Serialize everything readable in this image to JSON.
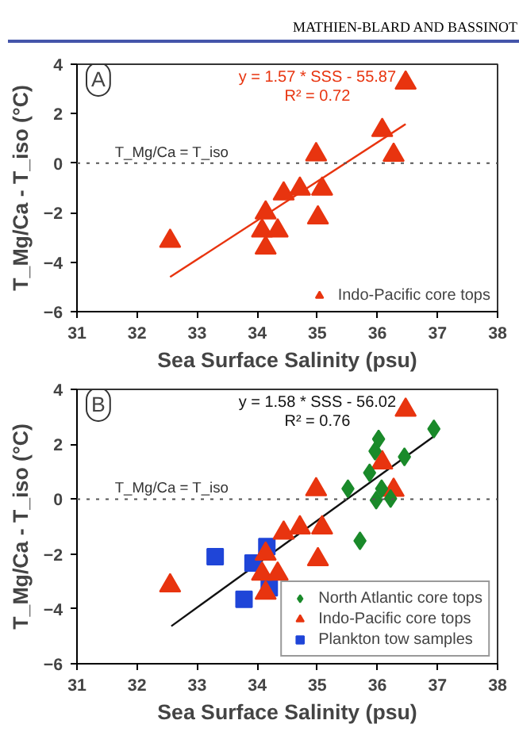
{
  "chart_data": [
    {
      "type": "scatter",
      "xlabel": "Sea Surface Salinity (psu)",
      "ylabel": "T_Mg/Ca - T_iso (°C)",
      "xlim": [
        31,
        38
      ],
      "ylim": [
        -6,
        4
      ],
      "xticks": [
        31,
        32,
        33,
        34,
        35,
        36,
        37,
        38
      ],
      "yticks": [
        -6,
        -4,
        -2,
        0,
        2,
        4
      ],
      "grid": false,
      "legend": "bottom right",
      "annotations": [
        "A",
        "y = 1.57 * SSS - 55.87",
        "R² = 0.72",
        "MATHIEN-BLARD AND BASSINOT"
      ],
      "ref_lines": [
        {
          "axis": "y",
          "value": 0,
          "label": "T_Mg/Ca = T_iso",
          "line_style": "dotted",
          "color": "#555555"
        }
      ],
      "series": [
        {
          "name": "Indo-Pacific core tops",
          "color": "#e8340f",
          "marker": "triangle",
          "x": [
            32.55,
            34.14,
            34.08,
            34.14,
            34.34,
            34.44,
            34.71,
            34.98,
            35.08,
            35.01,
            36.08,
            36.27,
            36.47
          ],
          "values": [
            -3.15,
            -2.0,
            -2.73,
            -3.42,
            -2.73,
            -1.23,
            -1.04,
            0.35,
            -1.04,
            -2.2,
            1.33,
            0.33,
            3.25
          ]
        },
        {
          "type": "line",
          "color": "#e8340f",
          "x": [
            32.55,
            36.47
          ],
          "values": [
            -4.6,
            1.58
          ],
          "line_style": "solid"
        }
      ]
    },
    {
      "type": "scatter",
      "xlabel": "Sea Surface Salinity (psu)",
      "ylabel": "T_Mg/Ca - T_iso (°C)",
      "xlim": [
        31,
        38
      ],
      "ylim": [
        -6,
        4
      ],
      "xticks": [
        31,
        32,
        33,
        34,
        35,
        36,
        37,
        38
      ],
      "yticks": [
        -6,
        -4,
        -2,
        0,
        2,
        4
      ],
      "grid": false,
      "legend": "bottom right",
      "annotations": [
        "B",
        "y = 1.58 * SSS - 56.02",
        "R² = 0.76"
      ],
      "ref_lines": [
        {
          "axis": "y",
          "value": 0,
          "label": "T_Mg/Ca = T_iso",
          "line_style": "dotted",
          "color": "#555555"
        }
      ],
      "series": [
        {
          "name": "North Atlantic core tops",
          "color": "#1a8a2a",
          "marker": "diamond",
          "x": [
            35.51,
            35.71,
            35.87,
            35.96,
            36.02,
            35.98,
            36.07,
            36.22,
            36.45,
            36.94
          ],
          "values": [
            0.38,
            -1.52,
            0.96,
            1.75,
            2.19,
            -0.04,
            0.38,
            0.02,
            1.54,
            2.56
          ]
        },
        {
          "name": "Indo-Pacific core tops",
          "color": "#e8340f",
          "marker": "triangle",
          "x": [
            32.55,
            34.14,
            34.08,
            34.14,
            34.34,
            34.44,
            34.71,
            34.98,
            35.08,
            35.01,
            36.08,
            36.27,
            36.47
          ],
          "values": [
            -3.15,
            -2.0,
            -2.73,
            -3.42,
            -2.73,
            -1.23,
            -1.04,
            0.35,
            -1.04,
            -2.2,
            1.33,
            0.33,
            3.25
          ]
        },
        {
          "name": "Plankton tow samples",
          "color": "#1f45d8",
          "marker": "square",
          "x": [
            33.3,
            33.78,
            33.93,
            34.16,
            34.2
          ],
          "values": [
            -2.1,
            -3.65,
            -2.33,
            -1.73,
            -3.23
          ]
        },
        {
          "type": "line",
          "color": "#111111",
          "x": [
            32.57,
            36.94
          ],
          "values": [
            -4.63,
            2.29
          ],
          "line_style": "solid"
        }
      ]
    }
  ]
}
